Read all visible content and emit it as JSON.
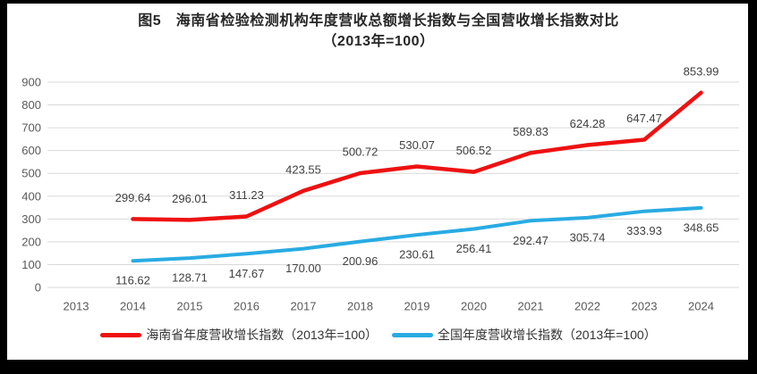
{
  "colors": {
    "hainan_red": "#ee1111",
    "national_blue": "#29abe2",
    "gridline": "#d9d9d9",
    "axis_text": "#595959",
    "data_label_text": "#404040",
    "title_text": "#262626",
    "frame_black": "#000000",
    "background": "#ffffff"
  },
  "title": {
    "line1": "图5　海南省检验检测机构年度营收总额增长指数与全国营收增长指数对比",
    "line2": "（2013年=100）"
  },
  "chart_data": {
    "type": "line",
    "title": "图5 海南省检验检测机构年度营收总额增长指数与全国营收增长指数对比（2013年=100）",
    "categories": [
      "2013",
      "2014",
      "2015",
      "2016",
      "2017",
      "2018",
      "2019",
      "2020",
      "2021",
      "2022",
      "2023",
      "2024"
    ],
    "xlabel": "",
    "ylabel": "",
    "ylim": [
      0,
      900
    ],
    "ytick_step": 100,
    "yticks": [
      0,
      100,
      200,
      300,
      400,
      500,
      600,
      700,
      800,
      900
    ],
    "grid": true,
    "data_labels": true,
    "legend_position": "bottom",
    "series": [
      {
        "name": "海南省年度营收增长指数（2013年=100）",
        "color_key": "hainan_red",
        "values": [
          null,
          299.64,
          296.01,
          311.23,
          423.55,
          500.72,
          530.07,
          506.52,
          589.83,
          624.28,
          647.47,
          853.99
        ]
      },
      {
        "name": "全国年度营收增长指数（2013年=100）",
        "color_key": "national_blue",
        "values": [
          null,
          116.62,
          128.71,
          147.67,
          170.0,
          200.96,
          230.61,
          256.41,
          292.47,
          305.74,
          333.93,
          348.65
        ]
      }
    ]
  },
  "legend": {
    "items": [
      {
        "label": "海南省年度营收增长指数（2013年=100）",
        "color_key": "hainan_red"
      },
      {
        "label": "全国年度营收增长指数（2013年=100）",
        "color_key": "national_blue"
      }
    ]
  }
}
